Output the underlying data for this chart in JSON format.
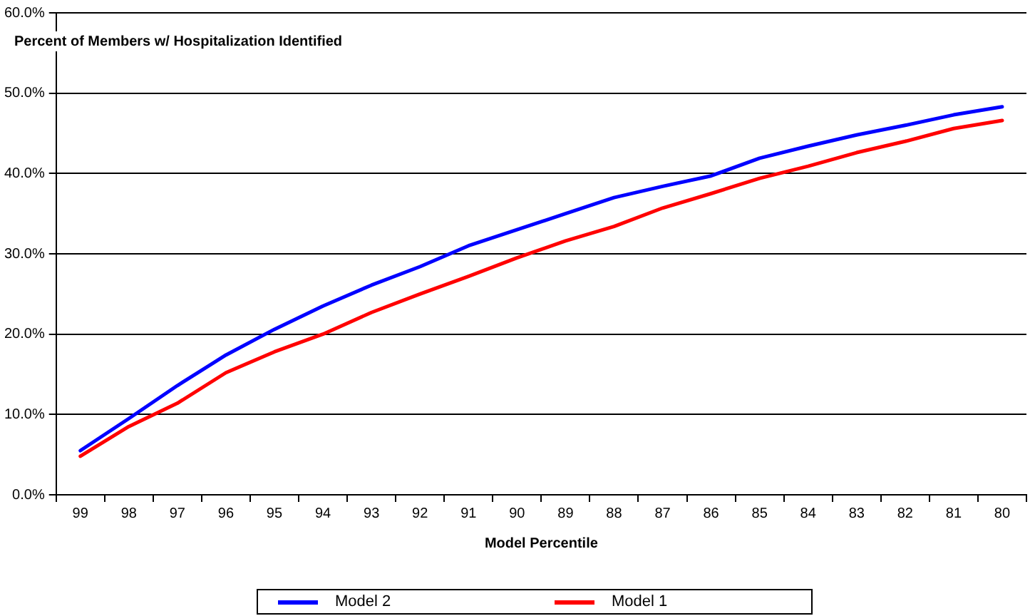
{
  "chart_data": {
    "type": "line",
    "xlabel": "Model Percentile",
    "ylabel": "Percent of Members w/ Hospitalization Identified",
    "categories": [
      "99",
      "98",
      "97",
      "96",
      "95",
      "94",
      "93",
      "92",
      "91",
      "90",
      "89",
      "88",
      "87",
      "86",
      "85",
      "84",
      "83",
      "82",
      "81",
      "80"
    ],
    "series": [
      {
        "name": "Model 2",
        "color": "#0000ff",
        "values": [
          5.5,
          9.5,
          13.6,
          17.4,
          20.6,
          23.5,
          26.1,
          28.4,
          31.0,
          33.0,
          35.0,
          37.0,
          38.4,
          39.7,
          41.9,
          43.4,
          44.8,
          46.0,
          47.3,
          48.3
        ]
      },
      {
        "name": "Model 1",
        "color": "#ff0000",
        "values": [
          4.8,
          8.5,
          11.4,
          15.2,
          17.8,
          20.0,
          22.7,
          25.0,
          27.2,
          29.5,
          31.6,
          33.4,
          35.7,
          37.5,
          39.4,
          40.9,
          42.6,
          44.0,
          45.6,
          46.6
        ]
      }
    ],
    "ylim": [
      0,
      60
    ],
    "yticks": [
      {
        "value": 0,
        "label": "0.0%"
      },
      {
        "value": 10,
        "label": "10.0%"
      },
      {
        "value": 20,
        "label": "20.0%"
      },
      {
        "value": 30,
        "label": "30.0%"
      },
      {
        "value": 40,
        "label": "40.0%"
      },
      {
        "value": 50,
        "label": "50.0%"
      },
      {
        "value": 60,
        "label": "60.0%"
      }
    ],
    "grid": "y",
    "legend": "bottom",
    "marker": "none",
    "line_style": "solid"
  }
}
